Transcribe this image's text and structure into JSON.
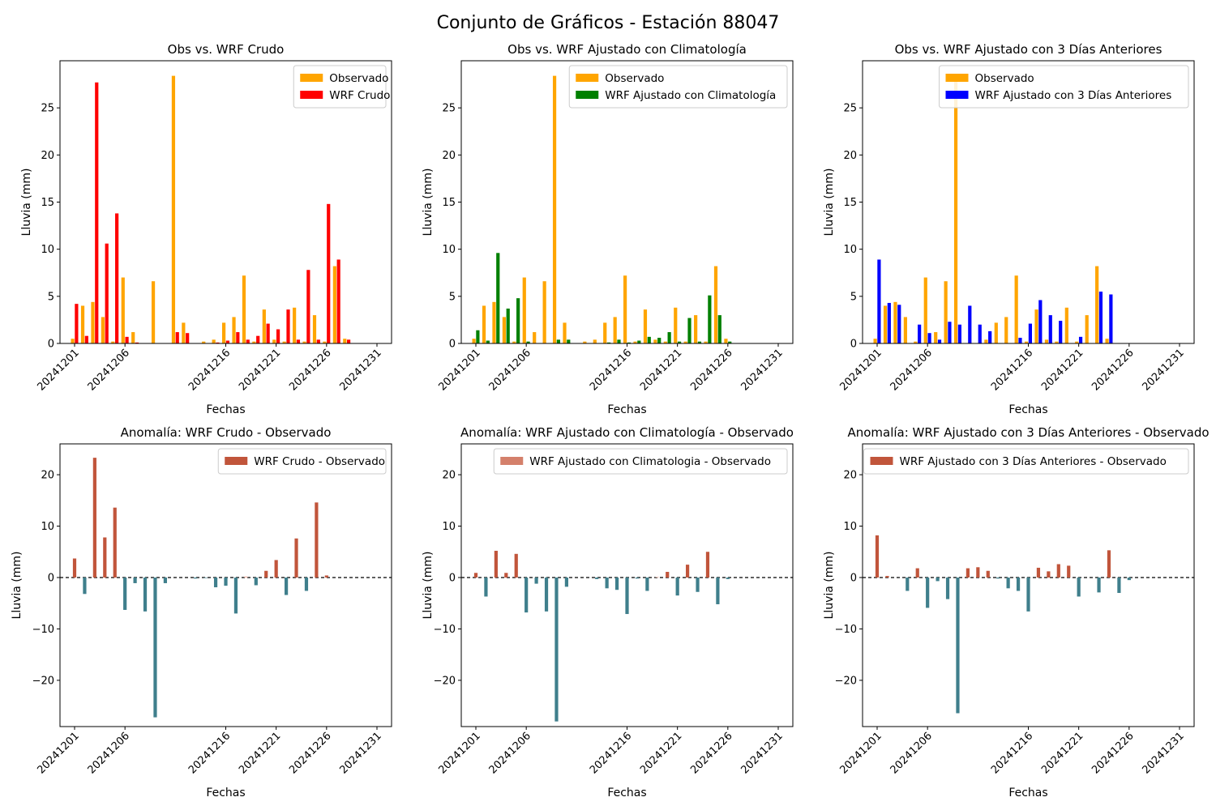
{
  "figure": {
    "suptitle": "Conjunto de Gráficos - Estación 88047"
  },
  "dates": [
    "20241201",
    "20241202",
    "20241203",
    "20241204",
    "20241205",
    "20241206",
    "20241207",
    "20241208",
    "20241209",
    "20241210",
    "20241211",
    "20241212",
    "20241213",
    "20241214",
    "20241215",
    "20241216",
    "20241217",
    "20241218",
    "20241219",
    "20241220",
    "20241221",
    "20241222",
    "20241223",
    "20241224",
    "20241225",
    "20241226",
    "20241227",
    "20241228",
    "20241229",
    "20241230",
    "20241231"
  ],
  "chart_data": [
    {
      "type": "bar",
      "title": "Obs vs. WRF Crudo",
      "xlabel": "Fechas",
      "ylabel": "Lluvia (mm)",
      "ylim": [
        0,
        30
      ],
      "yticks": [
        0,
        5,
        10,
        15,
        20,
        25
      ],
      "xtick_labels": [
        "20241201",
        "20241206",
        "20241216",
        "20241221",
        "20241226",
        "20241231"
      ],
      "legend_position": "top-right",
      "series": [
        {
          "name": "Observado",
          "color": "#ffa500",
          "values": [
            0.5,
            4.0,
            4.4,
            2.8,
            0.2,
            7.0,
            1.2,
            0,
            6.6,
            0,
            28.4,
            2.2,
            0,
            0.2,
            0.4,
            2.2,
            2.8,
            7.2,
            0.2,
            3.6,
            0.4,
            0.2,
            3.8,
            0.2,
            3.0,
            0.2,
            8.2,
            0.5,
            0,
            0,
            0
          ]
        },
        {
          "name": "WRF Crudo",
          "color": "#ff0000",
          "values": [
            4.2,
            0.8,
            27.7,
            10.6,
            13.8,
            0.7,
            0.1,
            0,
            0,
            0,
            1.2,
            1.1,
            0,
            0,
            0.1,
            0.3,
            1.2,
            0.4,
            0.8,
            2.1,
            1.5,
            3.6,
            0.4,
            7.8,
            0.4,
            14.8,
            8.9,
            0.4,
            0,
            0,
            0
          ]
        }
      ]
    },
    {
      "type": "bar",
      "title": "Obs vs. WRF Ajustado con Climatología",
      "xlabel": "Fechas",
      "ylabel": "Lluvia (mm)",
      "ylim": [
        0,
        30
      ],
      "yticks": [
        0,
        5,
        10,
        15,
        20,
        25
      ],
      "xtick_labels": [
        "20241201",
        "20241206",
        "20241216",
        "20241221",
        "20241226",
        "20241231"
      ],
      "legend_position": "top-right",
      "series": [
        {
          "name": "Observado",
          "color": "#ffa500",
          "values": [
            0.5,
            4.0,
            4.4,
            2.8,
            0.2,
            7.0,
            1.2,
            6.6,
            28.4,
            2.2,
            0,
            0.2,
            0.4,
            2.2,
            2.8,
            7.2,
            0.2,
            3.6,
            0.4,
            0.2,
            3.8,
            0.2,
            3.0,
            0.2,
            8.2,
            0.5,
            0,
            0,
            0,
            0,
            0
          ]
        },
        {
          "name": "WRF Ajustado con Climatología",
          "color": "#008000",
          "values": [
            1.4,
            0.3,
            9.6,
            3.7,
            4.8,
            0.2,
            0,
            0,
            0.4,
            0.4,
            0,
            0,
            0,
            0.1,
            0.4,
            0.1,
            0.3,
            0.7,
            0.6,
            1.2,
            0.2,
            2.7,
            0.2,
            5.1,
            3.0,
            0.2,
            0,
            0,
            0,
            0,
            0
          ]
        }
      ]
    },
    {
      "type": "bar",
      "title": "Obs vs. WRF Ajustado con 3 Días Anteriores",
      "xlabel": "Fechas",
      "ylabel": "Lluvia (mm)",
      "ylim": [
        0,
        30
      ],
      "yticks": [
        0,
        5,
        10,
        15,
        20,
        25
      ],
      "xtick_labels": [
        "20241201",
        "20241206",
        "20241216",
        "20241221",
        "20241226",
        "20241231"
      ],
      "legend_position": "top-right",
      "series": [
        {
          "name": "Observado",
          "color": "#ffa500",
          "values": [
            0.5,
            4.0,
            4.4,
            2.8,
            0.2,
            7.0,
            1.2,
            6.6,
            28.4,
            0,
            0,
            0.4,
            2.2,
            2.8,
            7.2,
            0.2,
            3.6,
            0.4,
            0.2,
            3.8,
            0.2,
            3.0,
            8.2,
            0.5,
            0,
            0,
            0,
            0,
            0,
            0,
            0
          ]
        },
        {
          "name": "WRF Ajustado con 3 Días Anteriores",
          "color": "#0000ff",
          "values": [
            8.9,
            4.3,
            4.1,
            0,
            2.0,
            1.1,
            0.4,
            2.3,
            2.0,
            4.0,
            2.0,
            1.3,
            0,
            0,
            0.6,
            2.1,
            4.6,
            3.0,
            2.4,
            0,
            0.7,
            0,
            5.5,
            5.2,
            0,
            0,
            0,
            0,
            0,
            0,
            0
          ]
        }
      ]
    },
    {
      "type": "bar",
      "title": "Anomalía: WRF Crudo - Observado",
      "xlabel": "Fechas",
      "ylabel": "Lluvia (mm)",
      "ylim": [
        -29,
        26
      ],
      "yticks": [
        -20,
        -10,
        0,
        10,
        20
      ],
      "xtick_labels": [
        "20241201",
        "20241206",
        "20241216",
        "20241221",
        "20241226",
        "20241231"
      ],
      "legend_position": "top-right",
      "zero_line": true,
      "positive_color": "#c1553b",
      "negative_color": "#3f7f8c",
      "series": [
        {
          "name": "WRF Crudo - Observado",
          "color": "#c1553b",
          "values": [
            3.7,
            -3.2,
            23.3,
            7.8,
            13.6,
            -6.3,
            -1.1,
            -6.6,
            -27.2,
            -1.1,
            0,
            0,
            -0.2,
            -0.1,
            -1.9,
            -1.6,
            -7.0,
            0.2,
            -1.5,
            1.3,
            3.4,
            -3.4,
            7.6,
            -2.6,
            14.6,
            0.4,
            0,
            0,
            0,
            0,
            0
          ]
        }
      ]
    },
    {
      "type": "bar",
      "title": "Anomalía: WRF Ajustado con Climatología - Observado",
      "xlabel": "Fechas",
      "ylabel": "Lluvia (mm)",
      "ylim": [
        -29,
        26
      ],
      "yticks": [
        -20,
        -10,
        0,
        10,
        20
      ],
      "xtick_labels": [
        "20241201",
        "20241206",
        "20241216",
        "20241221",
        "20241226",
        "20241231"
      ],
      "legend_position": "top-right",
      "zero_line": true,
      "positive_color": "#c1553b",
      "negative_color": "#3f7f8c",
      "series": [
        {
          "name": "WRF Ajustado con Climatologia - Observado",
          "color": "#d4806b",
          "values": [
            0.9,
            -3.7,
            5.2,
            0.9,
            4.6,
            -6.8,
            -1.2,
            -6.6,
            -28.0,
            -1.8,
            0,
            0,
            -0.3,
            -2.1,
            -2.4,
            -7.1,
            -0.2,
            -2.6,
            0.1,
            1.1,
            -3.5,
            2.5,
            -2.8,
            5.0,
            -5.2,
            -0.3,
            0,
            0,
            0,
            0,
            0
          ]
        }
      ]
    },
    {
      "type": "bar",
      "title": "Anomalía: WRF Ajustado con 3 Días Anteriores - Observado",
      "xlabel": "Fechas",
      "ylabel": "Lluvia (mm)",
      "ylim": [
        -29,
        26
      ],
      "yticks": [
        -20,
        -10,
        0,
        10,
        20
      ],
      "xtick_labels": [
        "20241201",
        "20241206",
        "20241216",
        "20241221",
        "20241226",
        "20241231"
      ],
      "legend_position": "top-right",
      "zero_line": true,
      "positive_color": "#c1553b",
      "negative_color": "#3f7f8c",
      "series": [
        {
          "name": "WRF Ajustado con 3 Días Anteriores - Observado",
          "color": "#c1553b",
          "values": [
            8.2,
            0.3,
            0,
            -2.6,
            1.8,
            -5.9,
            -0.7,
            -4.2,
            -26.4,
            1.8,
            2.0,
            1.3,
            -0.2,
            -2.1,
            -2.6,
            -6.6,
            1.9,
            1.2,
            2.6,
            2.3,
            -3.7,
            0,
            -2.9,
            5.3,
            -3.0,
            -0.5,
            0,
            0,
            0,
            0,
            0
          ]
        }
      ]
    }
  ]
}
